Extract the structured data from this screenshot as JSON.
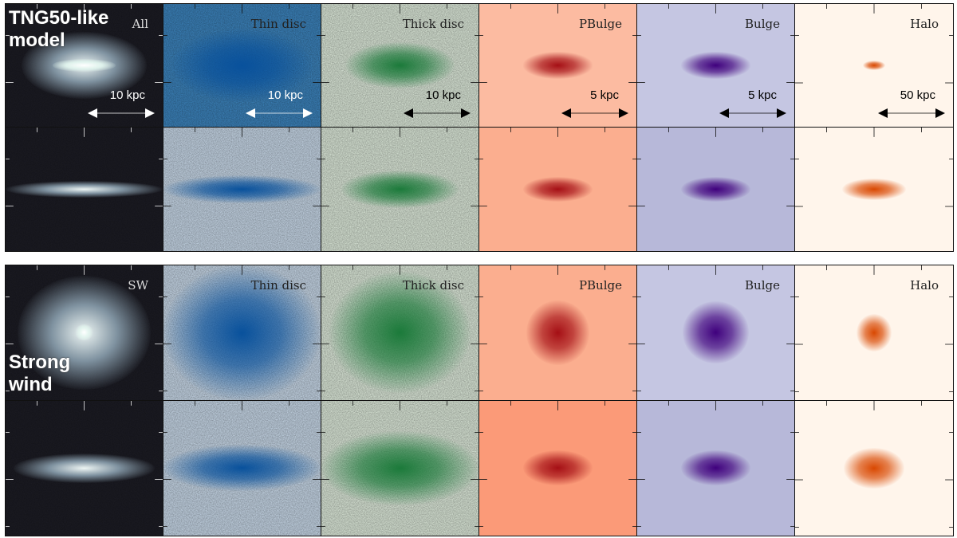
{
  "models": [
    {
      "label_lines": [
        "TNG50-like",
        "model"
      ],
      "panels": [
        {
          "title": "All",
          "scale": "10 kpc",
          "scale_color": "#ffffff"
        },
        {
          "title": "Thin disc",
          "scale": "10 kpc",
          "scale_color": "#ffffff"
        },
        {
          "title": "Thick disc",
          "scale": "10 kpc",
          "scale_color": "#000000"
        },
        {
          "title": "PBulge",
          "scale": "5 kpc",
          "scale_color": "#000000"
        },
        {
          "title": "Bulge",
          "scale": "5 kpc",
          "scale_color": "#000000"
        },
        {
          "title": "Halo",
          "scale": "50 kpc",
          "scale_color": "#000000"
        }
      ]
    },
    {
      "label_lines": [
        "Strong",
        "wind"
      ],
      "panels": [
        {
          "title": "SW",
          "scale": "",
          "scale_color": "#ffffff"
        },
        {
          "title": "Thin disc",
          "scale": "",
          "scale_color": "#000000"
        },
        {
          "title": "Thick disc",
          "scale": "",
          "scale_color": "#000000"
        },
        {
          "title": "PBulge",
          "scale": "",
          "scale_color": "#000000"
        },
        {
          "title": "Bulge",
          "scale": "",
          "scale_color": "#000000"
        },
        {
          "title": "Halo",
          "scale": "",
          "scale_color": "#000000"
        }
      ]
    }
  ],
  "colors": {
    "all_bg": "#1c1c24",
    "all_core": "#eef6f4",
    "thin_bg": "#d2e3f4",
    "thin_core": "#08519c",
    "thick_bg": "#e9f6e6",
    "thick_core": "#1b7a3a",
    "pbulge_bg": "#fcbba1",
    "pbulge_core": "#a50f15",
    "bulge_bg": "#c5c6e2",
    "bulge_core": "#3f007d",
    "halo_bg": "#fff5eb",
    "halo_core": "#d94801"
  }
}
